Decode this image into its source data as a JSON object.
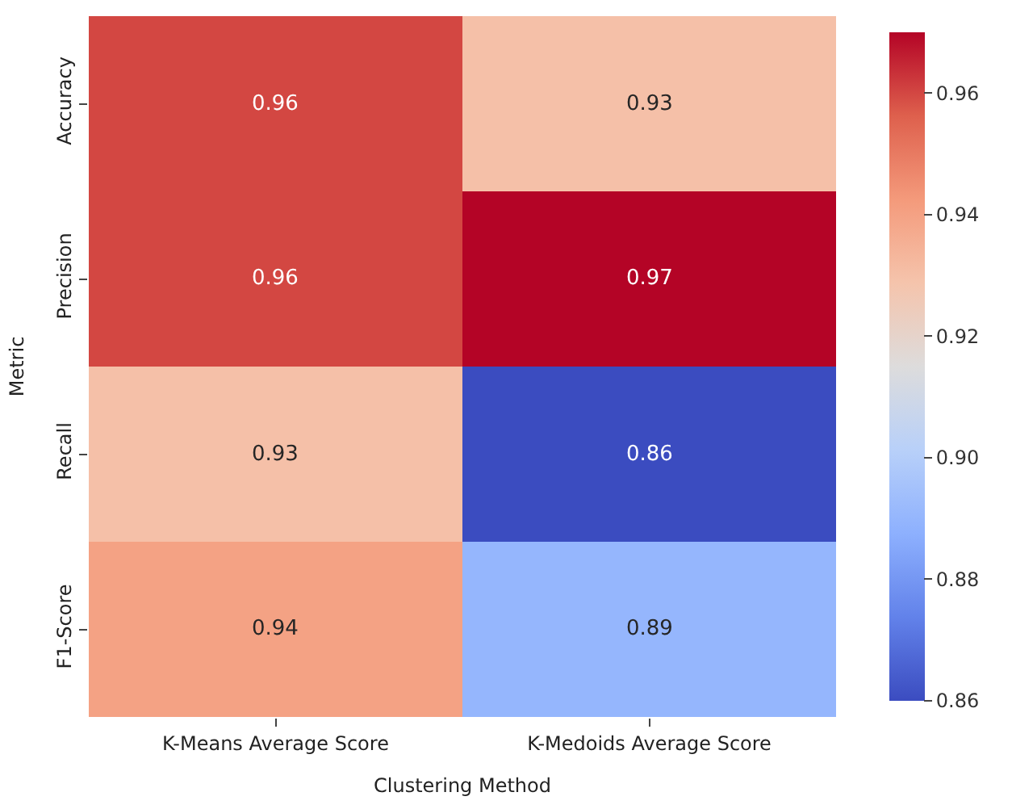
{
  "chart_data": {
    "type": "heatmap",
    "xlabel": "Clustering Method",
    "ylabel": "Metric",
    "categories": [
      "K-Means Average Score",
      "K-Medoids Average Score"
    ],
    "y_categories": [
      "Accuracy",
      "Precision",
      "Recall",
      "F1-Score"
    ],
    "cells": [
      [
        0.96,
        0.93
      ],
      [
        0.96,
        0.97
      ],
      [
        0.93,
        0.86
      ],
      [
        0.94,
        0.89
      ]
    ],
    "clim": [
      0.86,
      0.97
    ],
    "cticks": [
      0.86,
      0.88,
      {
        "value": 0.9,
        "label": "0.90"
      },
      0.92,
      0.94,
      0.96
    ],
    "data_labels": true
  }
}
